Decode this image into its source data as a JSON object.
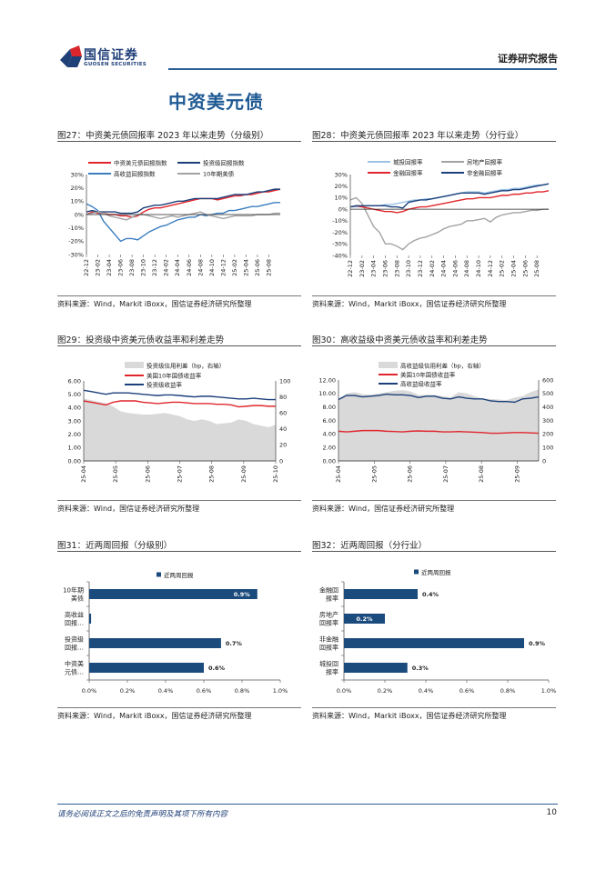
{
  "header": {
    "logo_cn": "国信证券",
    "logo_en": "GUOSEN SECURITIES",
    "report_type": "证券研究报告",
    "section_title": "中资美元债"
  },
  "footer": {
    "disclaimer": "请务必阅读正文之后的免责声明及其项下所有内容",
    "page_number": "10"
  },
  "colors": {
    "brand_blue": "#1f5a94",
    "red": "#e0262c",
    "navy": "#1b3f7a",
    "mid_blue": "#3b7dc0",
    "light_blue": "#9cc3e6",
    "gray": "#a3a3a3",
    "area": "#d9d9d9",
    "bar": "#1b4a7c"
  },
  "chart_data": [
    {
      "id": "fig27",
      "type": "line",
      "title": "图27：中资美元债回报率 2023 年以来走势（分级别）",
      "source": "资料来源：Wind，Markit iBoxx，国信证券经济研究所整理",
      "ylim": [
        -30,
        30
      ],
      "y_ticks": [
        {
          "v": 30,
          "t": "30%"
        },
        {
          "v": 20,
          "t": "20%"
        },
        {
          "v": 10,
          "t": "10%"
        },
        {
          "v": 0,
          "t": "0%"
        },
        {
          "v": -10,
          "t": "-10%"
        },
        {
          "v": -20,
          "t": "-20%"
        },
        {
          "v": -30,
          "t": "-30%"
        }
      ],
      "x_unit": "month index from 22-12",
      "x_end": 34,
      "tick_step": 2,
      "x_ticks": [
        "22-12",
        "23-02",
        "23-04",
        "23-06",
        "23-08",
        "23-10",
        "23-12",
        "24-02",
        "24-04",
        "24-06",
        "24-08",
        "24-10",
        "24-12",
        "25-02",
        "25-04",
        "25-06",
        "25-08"
      ],
      "series": [
        {
          "name": "中资美元债回报指数",
          "color": "#e0262c",
          "values": [
            0,
            2,
            1,
            1,
            0,
            0,
            -1,
            -1,
            -2,
            -1,
            2,
            4,
            5,
            5,
            6,
            7,
            8,
            9,
            10,
            11,
            12,
            12,
            12,
            11,
            12,
            13,
            14,
            14,
            15,
            15,
            16,
            17,
            17,
            18,
            19
          ]
        },
        {
          "name": "投资级回报指数",
          "color": "#1b3f7a",
          "values": [
            2,
            3,
            2,
            2,
            2,
            2,
            1,
            1,
            1,
            2,
            5,
            6,
            7,
            7,
            8,
            9,
            10,
            10,
            11,
            12,
            12,
            12,
            12,
            12,
            13,
            14,
            15,
            15,
            15,
            16,
            17,
            17,
            18,
            19,
            19
          ]
        },
        {
          "name": "高收益回报指数",
          "color": "#3b7dc0",
          "values": [
            8,
            6,
            3,
            -5,
            -10,
            -15,
            -20,
            -18,
            -18,
            -19,
            -16,
            -13,
            -11,
            -9,
            -8,
            -6,
            -4,
            -3,
            -2,
            -2,
            0,
            -1,
            0,
            1,
            1,
            3,
            3,
            4,
            5,
            6,
            6,
            7,
            8,
            9,
            9
          ]
        },
        {
          "name": "10年期美债",
          "color": "#a3a3a3",
          "values": [
            0,
            1,
            2,
            1,
            -1,
            -2,
            -3,
            -4,
            -2,
            0,
            0,
            -1,
            -2,
            -3,
            -2,
            -1,
            -2,
            -1,
            0,
            1,
            2,
            0,
            -1,
            -2,
            -3,
            -2,
            -1,
            -1,
            -1,
            -1,
            0,
            0,
            0,
            1,
            1
          ]
        }
      ]
    },
    {
      "id": "fig28",
      "type": "line",
      "title": "图28：中资美元债回报率 2023 年以来走势（分行业）",
      "source": "资料来源：Wind，Markit iBoxx，国信证券经济研究所整理",
      "ylim": [
        -40,
        30
      ],
      "y_ticks": [
        {
          "v": 30,
          "t": "30%"
        },
        {
          "v": 20,
          "t": "20%"
        },
        {
          "v": 10,
          "t": "10%"
        },
        {
          "v": 0,
          "t": "0%"
        },
        {
          "v": -10,
          "t": "-10%"
        },
        {
          "v": -20,
          "t": "-20%"
        },
        {
          "v": -30,
          "t": "-30%"
        },
        {
          "v": -40,
          "t": "-40%"
        }
      ],
      "x_unit": "month index from 22-12",
      "x_end": 34,
      "tick_step": 2,
      "x_ticks": [
        "22-12",
        "23-02",
        "23-04",
        "23-06",
        "23-08",
        "23-10",
        "23-12",
        "24-02",
        "24-04",
        "24-06",
        "24-08",
        "24-10",
        "24-12",
        "25-02",
        "25-04",
        "25-06",
        "25-08"
      ],
      "series": [
        {
          "name": "城投回报率",
          "color": "#9cc3e6",
          "values": [
            2,
            2,
            2,
            3,
            3,
            3,
            4,
            4,
            5,
            6,
            7,
            8,
            8,
            9,
            9,
            10,
            11,
            12,
            13,
            14,
            15,
            15,
            15,
            14,
            15,
            16,
            17,
            17,
            18,
            18,
            19,
            20,
            21,
            21,
            22
          ]
        },
        {
          "name": "房地产回报率",
          "color": "#a3a3a3",
          "values": [
            8,
            10,
            5,
            -5,
            -15,
            -20,
            -30,
            -30,
            -32,
            -35,
            -30,
            -27,
            -25,
            -24,
            -22,
            -20,
            -17,
            -15,
            -14,
            -13,
            -10,
            -10,
            -9,
            -8,
            -11,
            -7,
            -5,
            -4,
            -3,
            -3,
            -2,
            -1,
            -1,
            0,
            0
          ]
        },
        {
          "name": "金融回报率",
          "color": "#e0262c",
          "values": [
            2,
            3,
            2,
            1,
            0,
            -1,
            -2,
            -2,
            -3,
            -2,
            0,
            1,
            2,
            2,
            3,
            4,
            5,
            6,
            7,
            8,
            9,
            9,
            10,
            10,
            10,
            11,
            12,
            12,
            13,
            13,
            14,
            14,
            15,
            15,
            16
          ]
        },
        {
          "name": "非金融回报率",
          "color": "#1b3f7a",
          "values": [
            2,
            3,
            3,
            3,
            3,
            3,
            3,
            2,
            2,
            1,
            6,
            7,
            8,
            8,
            9,
            10,
            11,
            12,
            13,
            14,
            14,
            14,
            14,
            13,
            14,
            15,
            16,
            16,
            17,
            17,
            18,
            19,
            20,
            21,
            22
          ]
        }
      ]
    },
    {
      "id": "fig29",
      "type": "line",
      "title": "图29：投资级中资美元债收益率和利差走势",
      "source": "资料来源：Wind，国信证券经济研究所整理",
      "ylim": [
        0,
        6
      ],
      "y2lim": [
        0,
        100
      ],
      "y_ticks": [
        {
          "v": 6,
          "t": "6.00"
        },
        {
          "v": 5,
          "t": "5.00"
        },
        {
          "v": 4,
          "t": "4.00"
        },
        {
          "v": 3,
          "t": "3.00"
        },
        {
          "v": 2,
          "t": "2.00"
        },
        {
          "v": 1,
          "t": "1.00"
        },
        {
          "v": 0,
          "t": "0.00"
        }
      ],
      "y2_ticks": [
        {
          "v": 100,
          "t": "100"
        },
        {
          "v": 80,
          "t": "80"
        },
        {
          "v": 60,
          "t": "60"
        },
        {
          "v": 40,
          "t": "40"
        },
        {
          "v": 20,
          "t": "20"
        },
        {
          "v": 0,
          "t": "0"
        }
      ],
      "x_unit": "months from 25-04",
      "x_end": 6,
      "tick_step": 1,
      "x_ticks": [
        "25-04",
        "25-05",
        "25-06",
        "25-07",
        "25-08",
        "25-09",
        "25-10"
      ],
      "series": [
        {
          "name": "投资级信用利差（bp，右轴）",
          "kind": "area",
          "axis": "right",
          "color": "#d9d9d9",
          "values": [
            78,
            76,
            74,
            72,
            68,
            62,
            60,
            59,
            58,
            58,
            59,
            60,
            58,
            56,
            52,
            50,
            52,
            50,
            46,
            47,
            48,
            52,
            50,
            46,
            44,
            42,
            45
          ]
        },
        {
          "name": "美国10年国债收益率",
          "color": "#e0262c",
          "values": [
            4.5,
            4.4,
            4.3,
            4.2,
            4.4,
            4.5,
            4.5,
            4.5,
            4.4,
            4.35,
            4.3,
            4.35,
            4.4,
            4.4,
            4.35,
            4.3,
            4.3,
            4.3,
            4.25,
            4.25,
            4.2,
            4.05,
            4.1,
            4.15,
            4.15,
            4.1,
            4.1
          ]
        },
        {
          "name": "投资级收益率",
          "color": "#1b3f7a",
          "values": [
            5.3,
            5.2,
            5.1,
            5.0,
            5.1,
            5.1,
            5.1,
            5.05,
            5.0,
            4.95,
            4.9,
            4.95,
            4.95,
            4.9,
            4.85,
            4.8,
            4.85,
            4.85,
            4.8,
            4.75,
            4.7,
            4.65,
            4.65,
            4.7,
            4.65,
            4.6,
            4.6
          ]
        }
      ]
    },
    {
      "id": "fig30",
      "type": "line",
      "title": "图30：高收益级中资美元债收益率和利差走势",
      "source": "资料来源：Wind，国信证券经济研究所整理",
      "ylim": [
        0,
        12
      ],
      "y2lim": [
        0,
        600
      ],
      "y_ticks": [
        {
          "v": 12,
          "t": "12.00"
        },
        {
          "v": 10,
          "t": "10.00"
        },
        {
          "v": 8,
          "t": "8.00"
        },
        {
          "v": 6,
          "t": "6.00"
        },
        {
          "v": 4,
          "t": "4.00"
        },
        {
          "v": 2,
          "t": "2.00"
        },
        {
          "v": 0,
          "t": "0.00"
        }
      ],
      "y2_ticks": [
        {
          "v": 600,
          "t": "600"
        },
        {
          "v": 500,
          "t": "500"
        },
        {
          "v": 400,
          "t": "400"
        },
        {
          "v": 300,
          "t": "300"
        },
        {
          "v": 200,
          "t": "200"
        },
        {
          "v": 100,
          "t": "100"
        },
        {
          "v": 0,
          "t": "0"
        }
      ],
      "x_unit": "months from 25-04",
      "x_end": 5.6,
      "tick_step": 1,
      "x_ticks": [
        "25-04",
        "25-05",
        "25-06",
        "25-07",
        "25-08",
        "25-09"
      ],
      "series": [
        {
          "name": "高收益级信用利差（bp，右轴）",
          "kind": "area",
          "axis": "right",
          "color": "#d9d9d9",
          "values": [
            460,
            500,
            510,
            495,
            490,
            500,
            510,
            520,
            525,
            515,
            490,
            490,
            490,
            480,
            470,
            510,
            500,
            480,
            460,
            460,
            455,
            450,
            470,
            480,
            510,
            530
          ]
        },
        {
          "name": "美国10年国债收益率",
          "color": "#e0262c",
          "values": [
            4.4,
            4.3,
            4.4,
            4.5,
            4.5,
            4.5,
            4.4,
            4.35,
            4.3,
            4.4,
            4.45,
            4.4,
            4.4,
            4.3,
            4.3,
            4.35,
            4.3,
            4.25,
            4.2,
            4.1,
            4.1,
            4.15,
            4.2,
            4.2,
            4.15,
            4.1
          ]
        },
        {
          "name": "高收益级收益率",
          "color": "#1b3f7a",
          "values": [
            9.1,
            9.7,
            9.7,
            9.5,
            9.6,
            9.7,
            9.9,
            9.8,
            9.8,
            9.7,
            9.4,
            9.6,
            9.6,
            9.3,
            9.2,
            9.5,
            9.3,
            9.2,
            9.2,
            8.9,
            8.8,
            8.8,
            8.7,
            9.2,
            9.3,
            9.5
          ]
        }
      ]
    },
    {
      "id": "fig31",
      "type": "bar",
      "title": "图31：近两周回报（分级别）",
      "source": "资料来源：Wind，Markit iBoxx，国信证券经济研究所整理",
      "legend": "近两周回报",
      "xlim": [
        0,
        1.0
      ],
      "x_ticks": [
        {
          "v": 0,
          "t": "0.0%"
        },
        {
          "v": 0.2,
          "t": "0.2%"
        },
        {
          "v": 0.4,
          "t": "0.4%"
        },
        {
          "v": 0.6,
          "t": "0.6%"
        },
        {
          "v": 0.8,
          "t": "0.8%"
        },
        {
          "v": 1.0,
          "t": "1.0%"
        }
      ],
      "categories": [
        [
          "10年期",
          "美债"
        ],
        [
          "高收益",
          "回报…"
        ],
        [
          "投资级",
          "回报…"
        ],
        [
          "中资美",
          "元债…"
        ]
      ],
      "values": [
        0.88,
        0.01,
        0.69,
        0.6
      ],
      "labels": [
        "0.9%",
        "",
        "0.7%",
        "0.6%"
      ],
      "label_inside": [
        true,
        false,
        false,
        false
      ]
    },
    {
      "id": "fig32",
      "type": "bar",
      "title": "图32：近两周回报（分行业）",
      "source": "资料来源：Wind，Markit iBoxx，国信证券经济研究所整理",
      "legend": "近两周回报",
      "xlim": [
        0,
        1.0
      ],
      "x_ticks": [
        {
          "v": 0,
          "t": "0.0%"
        },
        {
          "v": 0.2,
          "t": "0.2%"
        },
        {
          "v": 0.4,
          "t": "0.4%"
        },
        {
          "v": 0.6,
          "t": "0.6%"
        },
        {
          "v": 0.8,
          "t": "0.8%"
        },
        {
          "v": 1.0,
          "t": "1.0%"
        }
      ],
      "categories": [
        [
          "金融回",
          "报率"
        ],
        [
          "房地产",
          "回报率"
        ],
        [
          "非金融",
          "回报率"
        ],
        [
          "城投回",
          "报率"
        ]
      ],
      "values": [
        0.36,
        0.2,
        0.88,
        0.31
      ],
      "labels": [
        "0.4%",
        "0.2%",
        "0.9%",
        "0.3%"
      ],
      "label_inside": [
        false,
        true,
        false,
        false
      ]
    }
  ]
}
